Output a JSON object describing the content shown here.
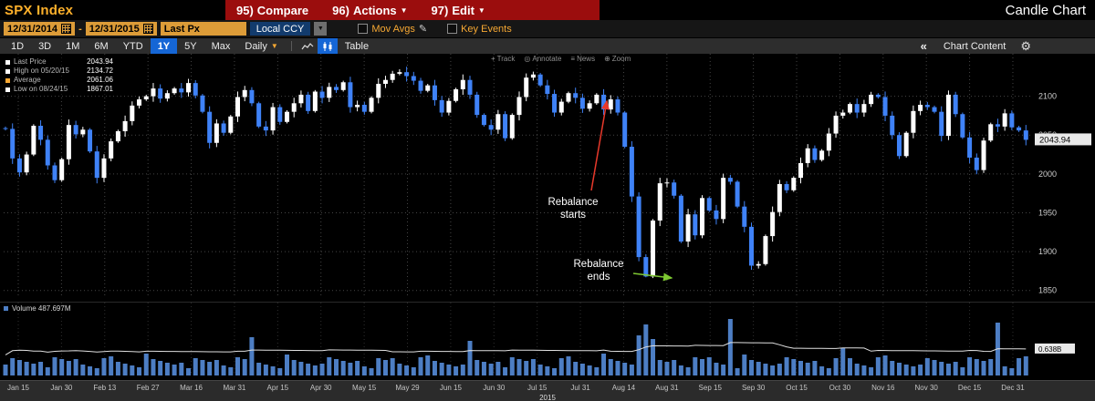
{
  "window": {
    "security": "SPX Index",
    "buttons": [
      {
        "num": "95)",
        "label": "Compare"
      },
      {
        "num": "96)",
        "label": "Actions"
      },
      {
        "num": "97)",
        "label": "Edit"
      }
    ],
    "title": "Candle Chart"
  },
  "toolbar1": {
    "date_from": "12/31/2014",
    "date_sep": "-",
    "date_to": "12/31/2015",
    "field": "Last Px",
    "currency": "Local CCY",
    "mov_avgs": "Mov Avgs",
    "key_events": "Key Events"
  },
  "toolbar2": {
    "ranges": [
      "1D",
      "3D",
      "1M",
      "6M",
      "YTD",
      "1Y",
      "5Y",
      "Max"
    ],
    "selected_range": "1Y",
    "frequency": "Daily",
    "table": "Table",
    "collapse": "«",
    "chart_content": "Chart Content"
  },
  "chart_tools": {
    "track": "Track",
    "annotate": "Annotate",
    "news": "News",
    "zoom": "Zoom"
  },
  "chart_data": {
    "type": "candlestick",
    "title": "SPX Index – 1Y Daily Candle Chart",
    "date_range": [
      "12/31/2014",
      "12/31/2015"
    ],
    "stats": {
      "last_label": "Last Price",
      "last_price": "2043.94",
      "high_label": "High on 05/20/15",
      "high": "2134.72",
      "average_label": "Average",
      "average": "2061.06",
      "low_label": "Low on 08/24/15",
      "low": "1867.01"
    },
    "y_ticks": [
      2100,
      2050,
      2000,
      1950,
      1900,
      1850
    ],
    "y_min": 1845,
    "y_max": 2150,
    "x_ticks": [
      "Jan 15",
      "Jan 30",
      "Feb 13",
      "Feb 27",
      "Mar 16",
      "Mar 31",
      "Apr 15",
      "Apr 30",
      "May 15",
      "May 29",
      "Jun 15",
      "Jun 30",
      "Jul 15",
      "Jul 31",
      "Aug 14",
      "Aug 31",
      "Sep 15",
      "Sep 30",
      "Oct 15",
      "Oct 30",
      "Nov 16",
      "Nov 30",
      "Dec 15",
      "Dec 31"
    ],
    "year": "2015",
    "closes": [
      2058,
      2020,
      2002,
      2025,
      2062,
      2044,
      2011,
      1992,
      2019,
      2063,
      2051,
      2057,
      2029,
      1995,
      2020,
      2042,
      2055,
      2068,
      2088,
      2096,
      2100,
      2110,
      2097,
      2104,
      2110,
      2105,
      2117,
      2101,
      2080,
      2040,
      2065,
      2053,
      2074,
      2099,
      2108,
      2091,
      2061,
      2056,
      2086,
      2067,
      2080,
      2091,
      2102,
      2081,
      2106,
      2098,
      2112,
      2108,
      2118,
      2086,
      2089,
      2080,
      2098,
      2116,
      2121,
      2129,
      2131,
      2126,
      2120,
      2107,
      2114,
      2095,
      2079,
      2094,
      2109,
      2121,
      2102,
      2076,
      2063,
      2057,
      2077,
      2046,
      2076,
      2099,
      2124,
      2128,
      2114,
      2103,
      2079,
      2093,
      2104,
      2098,
      2084,
      2091,
      2102,
      2083,
      2096,
      2079,
      2035,
      1971,
      1893,
      1868,
      1940,
      1988,
      1989,
      1972,
      1913,
      1948,
      1921,
      1969,
      1953,
      1942,
      1995,
      1990,
      1958,
      1932,
      1882,
      1884,
      1920,
      1951,
      1987,
      1979,
      1995,
      2014,
      2033,
      2018,
      2030,
      2052,
      2075,
      2079,
      2090,
      2079,
      2090,
      2102,
      2099,
      2075,
      2050,
      2023,
      2053,
      2081,
      2089,
      2086,
      2080,
      2049,
      2102,
      2077,
      2047,
      2021,
      2005,
      2043,
      2064,
      2061,
      2078,
      2060,
      2056,
      2043.94
    ],
    "high_point": {
      "index": 56,
      "price": 2134.72
    },
    "low_point": {
      "index": 91,
      "price": 1867.01
    },
    "volume": {
      "legend": "Volume 487.697M",
      "axis_label": "0.638B",
      "spikes": {
        "35": 42,
        "66": 38,
        "90": 44,
        "91": 56,
        "92": 40,
        "103": 62,
        "119": 30,
        "141": 58
      }
    },
    "annotations": {
      "starts": {
        "line1": "Rebalance",
        "line2": "starts"
      },
      "ends": {
        "line1": "Rebalance",
        "line2": "ends"
      }
    }
  }
}
